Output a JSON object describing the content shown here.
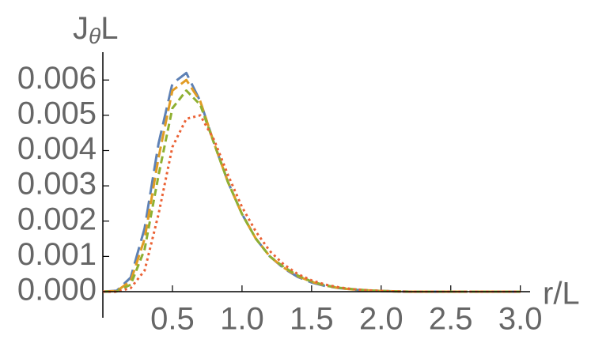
{
  "chart_data": {
    "type": "line",
    "x_label": "r/L",
    "y_label": [
      "J",
      "θ",
      "L"
    ],
    "x": [
      0,
      0.1,
      0.2,
      0.3,
      0.4,
      0.5,
      0.6,
      0.7,
      0.8,
      0.9,
      1.0,
      1.1,
      1.2,
      1.3,
      1.4,
      1.5,
      1.6,
      1.7,
      1.8,
      1.9,
      2.0,
      2.1,
      2.2,
      2.3,
      2.4,
      2.5,
      2.6,
      2.7,
      2.8,
      2.9,
      3.0
    ],
    "series": [
      {
        "color": "#5e81b5",
        "values": [
          0,
          3e-05,
          0.0004,
          0.0018,
          0.0042,
          0.0059,
          0.0062,
          0.0054,
          0.0042,
          0.0031,
          0.0022,
          0.0015,
          0.001,
          0.00066,
          0.00042,
          0.00026,
          0.00016,
          0.0001,
          6e-05,
          3e-05,
          2e-05,
          1e-05,
          0,
          0,
          0,
          0,
          0,
          0,
          0,
          0,
          0
        ]
      },
      {
        "color": "#e19c24",
        "values": [
          0,
          2e-05,
          0.0003,
          0.0015,
          0.0038,
          0.0057,
          0.006,
          0.0054,
          0.0042,
          0.0031,
          0.0022,
          0.0015,
          0.001,
          0.00068,
          0.00044,
          0.00028,
          0.00017,
          0.0001,
          6e-05,
          4e-05,
          2e-05,
          1e-05,
          0,
          0,
          0,
          0,
          0,
          0,
          0,
          0,
          0
        ]
      },
      {
        "color": "#8fb032",
        "values": [
          0,
          1e-05,
          0.0002,
          0.0012,
          0.0033,
          0.0052,
          0.0057,
          0.0053,
          0.0042,
          0.0031,
          0.0022,
          0.0015,
          0.001,
          0.0007,
          0.00046,
          0.00029,
          0.00018,
          0.00011,
          7e-05,
          4e-05,
          2e-05,
          1e-05,
          0,
          0,
          0,
          0,
          0,
          0,
          0,
          0,
          0
        ]
      },
      {
        "color": "#eb6235",
        "values": [
          0,
          0,
          0.0001,
          0.0006,
          0.0022,
          0.0041,
          0.0049,
          0.005,
          0.0043,
          0.0033,
          0.0024,
          0.0017,
          0.00115,
          0.00077,
          0.0005,
          0.00032,
          0.0002,
          0.00012,
          7e-05,
          4e-05,
          2e-05,
          1e-05,
          0,
          0,
          0,
          0,
          0,
          0,
          0,
          0,
          0
        ]
      }
    ],
    "xlim": [
      0,
      3.07
    ],
    "ylim": [
      0,
      0.0067
    ],
    "xticks": [
      {
        "value": 0.5,
        "label": "0.5"
      },
      {
        "value": 1,
        "label": "1.0"
      },
      {
        "value": 1.5,
        "label": "1.5"
      },
      {
        "value": 2,
        "label": "2.0"
      },
      {
        "value": 2.5,
        "label": "2.5"
      },
      {
        "value": 3,
        "label": "3.0"
      }
    ],
    "yticks": [
      {
        "value": 0,
        "label": "0.000"
      },
      {
        "value": 0.001,
        "label": "0.001"
      },
      {
        "value": 0.002,
        "label": "0.002"
      },
      {
        "value": 0.003,
        "label": "0.003"
      },
      {
        "value": 0.004,
        "label": "0.004"
      },
      {
        "value": 0.005,
        "label": "0.005"
      },
      {
        "value": 0.006,
        "label": "0.006"
      }
    ]
  }
}
